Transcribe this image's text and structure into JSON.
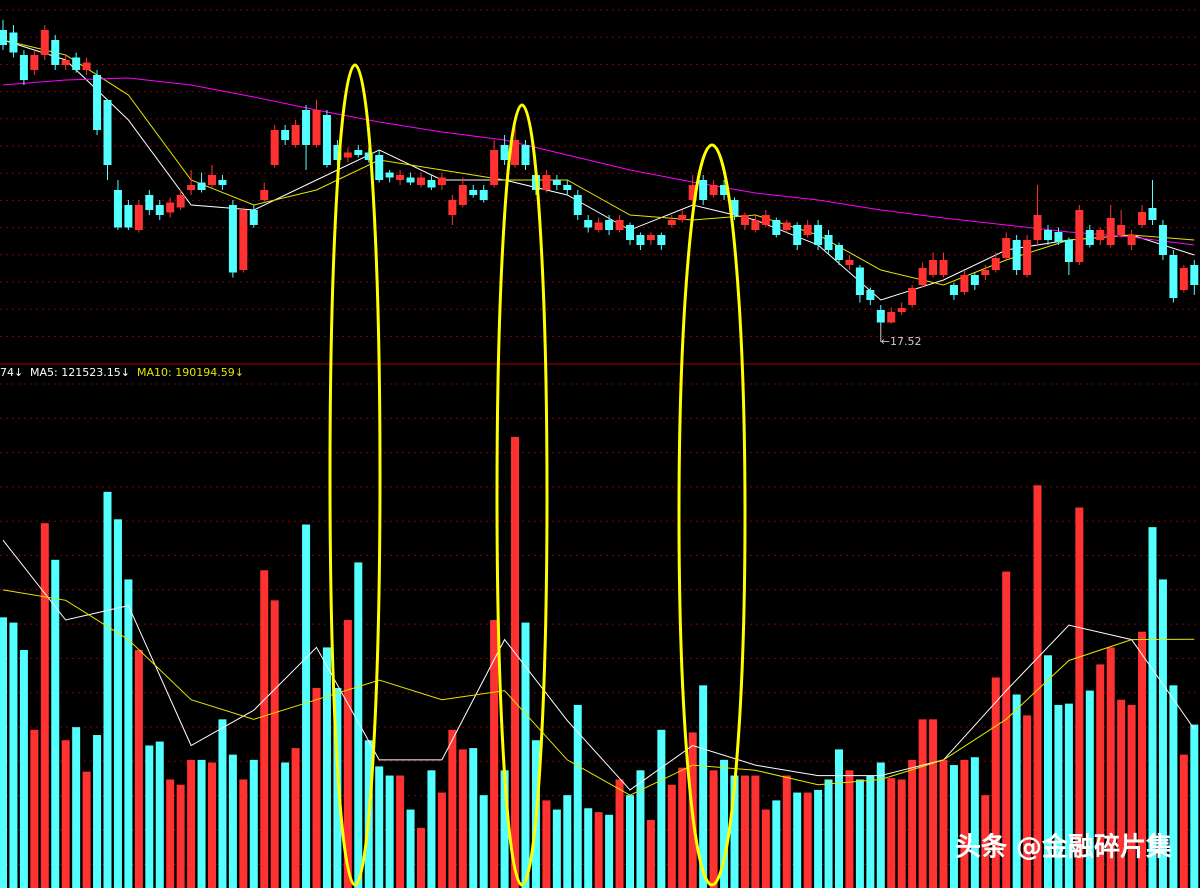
{
  "chart_data": [
    {
      "type": "candlestick",
      "open": [
        23.4,
        23.35,
        22.9,
        22.6,
        22.9,
        23.2,
        22.7,
        22.85,
        22.6,
        22.5,
        22.0,
        20.2,
        19.9,
        19.4,
        20.1,
        19.9,
        19.75,
        19.85,
        20.2,
        20.35,
        20.3,
        20.4,
        19.9,
        18.6,
        19.8,
        20.0,
        20.7,
        21.4,
        21.1,
        21.8,
        21.1,
        21.7,
        21.1,
        20.85,
        21.0,
        20.95,
        20.9,
        20.55,
        20.4,
        20.45,
        20.3,
        20.4,
        20.3,
        19.7,
        19.9,
        20.2,
        20.2,
        20.3,
        21.1,
        20.7,
        21.1,
        20.5,
        20.2,
        20.4,
        20.3,
        20.1,
        19.6,
        19.4,
        19.6,
        19.4,
        19.5,
        19.3,
        19.2,
        19.3,
        19.5,
        19.6,
        20.0,
        20.4,
        20.1,
        20.3,
        20.0,
        19.5,
        19.4,
        19.5,
        19.6,
        19.4,
        19.5,
        19.3,
        19.5,
        19.3,
        19.1,
        18.7,
        18.65,
        18.2,
        17.8,
        17.55,
        17.76,
        17.9,
        18.3,
        18.5,
        18.5,
        18.3,
        18.16,
        18.5,
        18.5,
        18.6,
        18.84,
        19.2,
        18.5,
        19.2,
        19.4,
        19.36,
        19.2,
        18.76,
        19.4,
        19.2,
        19.1,
        19.3,
        19.1,
        19.5,
        19.84,
        19.5,
        18.9,
        18.2,
        18.7
      ],
      "high": [
        23.6,
        23.5,
        23.0,
        23.0,
        23.5,
        23.3,
        22.9,
        22.95,
        22.85,
        22.6,
        22.0,
        20.4,
        20.0,
        20.0,
        20.2,
        20.0,
        20.05,
        20.2,
        20.6,
        20.55,
        20.7,
        20.5,
        20.0,
        19.85,
        19.9,
        20.35,
        21.5,
        21.5,
        21.6,
        21.9,
        22.0,
        21.8,
        21.2,
        21.05,
        21.1,
        21.05,
        21.0,
        20.6,
        20.6,
        20.55,
        20.55,
        20.5,
        20.55,
        20.1,
        20.45,
        20.3,
        20.3,
        21.2,
        21.3,
        21.5,
        21.2,
        20.6,
        20.6,
        20.5,
        20.4,
        20.2,
        19.7,
        19.65,
        19.7,
        19.7,
        19.55,
        19.35,
        19.35,
        19.35,
        19.7,
        19.8,
        20.5,
        20.5,
        20.4,
        20.4,
        20.05,
        19.75,
        19.7,
        19.8,
        19.65,
        19.6,
        19.55,
        19.6,
        19.6,
        19.4,
        19.15,
        18.9,
        18.7,
        18.25,
        17.9,
        17.85,
        17.95,
        18.3,
        18.75,
        18.95,
        18.95,
        18.35,
        18.6,
        18.55,
        18.7,
        18.95,
        19.35,
        19.3,
        19.3,
        20.3,
        19.5,
        19.45,
        19.25,
        19.9,
        19.5,
        19.45,
        19.9,
        19.8,
        19.4,
        19.9,
        20.4,
        19.6,
        19.0,
        18.7,
        18.8
      ],
      "low": [
        23.0,
        22.85,
        22.3,
        22.5,
        22.8,
        22.6,
        22.6,
        22.55,
        22.5,
        21.3,
        20.4,
        19.4,
        19.4,
        19.35,
        19.7,
        19.6,
        19.65,
        19.8,
        20.1,
        20.15,
        20.25,
        20.2,
        18.45,
        18.55,
        19.45,
        19.95,
        20.65,
        21.1,
        21.05,
        20.6,
        21.05,
        20.65,
        20.7,
        20.75,
        20.85,
        20.75,
        20.35,
        20.35,
        20.3,
        20.3,
        20.25,
        20.2,
        20.2,
        19.5,
        19.85,
        20.05,
        19.95,
        20.25,
        20.7,
        20.65,
        20.6,
        20.1,
        20.15,
        20.2,
        20.1,
        19.6,
        19.35,
        19.35,
        19.3,
        19.35,
        19.1,
        19.0,
        19.1,
        19.0,
        19.45,
        19.55,
        19.9,
        19.9,
        20.05,
        20.0,
        19.6,
        19.4,
        19.35,
        19.45,
        19.25,
        19.35,
        19.0,
        19.25,
        19.0,
        18.9,
        18.7,
        18.6,
        17.95,
        17.9,
        17.52,
        17.53,
        17.7,
        17.85,
        18.25,
        18.45,
        18.45,
        18.0,
        18.1,
        18.2,
        18.4,
        18.55,
        18.8,
        18.5,
        18.45,
        19.1,
        19.1,
        19.1,
        18.5,
        18.7,
        19.05,
        19.1,
        19.05,
        19.25,
        19.0,
        19.45,
        19.5,
        18.8,
        17.95,
        18.15,
        18.1
      ],
      "close": [
        23.1,
        22.95,
        22.4,
        22.9,
        23.4,
        22.7,
        22.8,
        22.6,
        22.75,
        21.4,
        20.7,
        19.45,
        19.45,
        19.9,
        19.8,
        19.7,
        19.95,
        20.1,
        20.3,
        20.2,
        20.5,
        20.3,
        18.55,
        19.8,
        19.5,
        20.2,
        21.4,
        21.2,
        21.5,
        21.1,
        21.8,
        20.7,
        20.8,
        20.95,
        20.9,
        20.8,
        20.4,
        20.45,
        20.5,
        20.35,
        20.45,
        20.25,
        20.45,
        20.0,
        20.3,
        20.1,
        20.0,
        21.0,
        20.8,
        21.2,
        20.7,
        20.2,
        20.5,
        20.3,
        20.2,
        19.7,
        19.45,
        19.55,
        19.4,
        19.6,
        19.2,
        19.1,
        19.3,
        19.1,
        19.6,
        19.7,
        20.3,
        20.0,
        20.3,
        20.1,
        19.7,
        19.7,
        19.6,
        19.7,
        19.3,
        19.55,
        19.1,
        19.5,
        19.1,
        19.0,
        18.8,
        18.8,
        18.1,
        18.0,
        17.55,
        17.76,
        17.84,
        18.24,
        18.64,
        18.8,
        18.8,
        18.1,
        18.5,
        18.3,
        18.6,
        18.84,
        19.24,
        18.6,
        19.2,
        19.7,
        19.2,
        19.16,
        18.76,
        19.8,
        19.1,
        19.4,
        19.64,
        19.5,
        19.3,
        19.76,
        19.6,
        18.9,
        18.04,
        18.64,
        18.3
      ],
      "up_color": "#ff3232",
      "down_color": "#54ffff",
      "ylim": [
        16.8,
        24.0
      ],
      "grid": true,
      "lines": [
        {
          "color": "#ffffff",
          "x": [
            0,
            6,
            12,
            18,
            24,
            30,
            36,
            42,
            48,
            54,
            60,
            66,
            72,
            78,
            84,
            90,
            96,
            102,
            108,
            114
          ],
          "values": [
            23.2,
            22.8,
            21.6,
            19.9,
            19.8,
            20.4,
            21.0,
            20.4,
            20.4,
            20.1,
            19.4,
            19.9,
            19.6,
            19.1,
            18.0,
            18.4,
            19.0,
            19.2,
            19.3,
            18.9
          ]
        },
        {
          "color": "#e6e600",
          "x": [
            0,
            6,
            12,
            18,
            24,
            30,
            36,
            42,
            48,
            54,
            60,
            66,
            72,
            78,
            84,
            90,
            96,
            102,
            108,
            114
          ],
          "values": [
            23.2,
            22.9,
            22.1,
            20.4,
            19.9,
            20.2,
            20.8,
            20.6,
            20.4,
            20.4,
            19.7,
            19.6,
            19.7,
            19.3,
            18.6,
            18.3,
            18.8,
            19.2,
            19.3,
            19.2
          ]
        },
        {
          "color": "#ff00ff",
          "x": [
            0,
            6,
            12,
            18,
            24,
            30,
            36,
            42,
            48,
            54,
            60,
            66,
            72,
            78,
            84,
            90,
            96,
            102,
            108,
            114
          ],
          "values": [
            22.3,
            22.4,
            22.44,
            22.3,
            22.06,
            21.8,
            21.56,
            21.36,
            21.2,
            20.9,
            20.6,
            20.36,
            20.14,
            20.0,
            19.8,
            19.64,
            19.5,
            19.36,
            19.26,
            19.1
          ]
        }
      ],
      "low_label": "←17.52"
    },
    {
      "type": "bar",
      "values": [
        207000,
        203000,
        182000,
        121000,
        279000,
        251000,
        113000,
        123000,
        89000,
        117000,
        303000,
        282000,
        236000,
        182000,
        109000,
        112000,
        83000,
        79000,
        98000,
        98000,
        96000,
        129000,
        102000,
        83000,
        98000,
        243000,
        220000,
        96000,
        107000,
        278000,
        153000,
        184000,
        153000,
        205000,
        249000,
        113000,
        93000,
        86000,
        86000,
        60000,
        46000,
        90000,
        73000,
        121000,
        106000,
        107000,
        71000,
        205000,
        90000,
        345000,
        203000,
        113000,
        67000,
        60000,
        71000,
        140000,
        61000,
        58000,
        56000,
        83000,
        71000,
        90000,
        52000,
        121000,
        79000,
        92000,
        119000,
        155000,
        90000,
        98000,
        86000,
        86000,
        86000,
        60000,
        67000,
        86000,
        73000,
        73000,
        75000,
        83000,
        106000,
        90000,
        83000,
        86000,
        96000,
        84000,
        83000,
        98000,
        129000,
        129000,
        98000,
        94000,
        98000,
        100000,
        71000,
        161000,
        242000,
        148000,
        132000,
        308000,
        178000,
        140000,
        141000,
        291000,
        151000,
        171000,
        184000,
        144000,
        140000,
        196000,
        276000,
        236000,
        155000,
        102000,
        125000
      ],
      "ylim": [
        0,
        400000
      ],
      "grid": true,
      "lines": [
        {
          "name": "MA5",
          "color": "#ffffff",
          "x": [
            0,
            6,
            12,
            18,
            24,
            30,
            36,
            42,
            48,
            54,
            60,
            66,
            72,
            78,
            84,
            90,
            96,
            102,
            108,
            114
          ],
          "values": [
            266000,
            205000,
            216000,
            109000,
            136000,
            184000,
            98000,
            98000,
            190000,
            128000,
            75000,
            109000,
            94000,
            86000,
            86000,
            98000,
            151000,
            201000,
            190000,
            121523.15
          ]
        },
        {
          "name": "MA10",
          "color": "#e6e600",
          "x": [
            0,
            6,
            12,
            18,
            24,
            30,
            36,
            42,
            48,
            54,
            60,
            66,
            72,
            78,
            84,
            90,
            96,
            102,
            108,
            114
          ],
          "values": [
            228000,
            220000,
            190000,
            144000,
            129000,
            144000,
            159000,
            144000,
            151000,
            98000,
            71000,
            94000,
            90000,
            79000,
            83000,
            98000,
            129000,
            174000,
            190000,
            190194.59
          ]
        }
      ],
      "legend_texts": [
        "74↓",
        "MA5: 121523.15↓",
        "MA10: 190194.59↓"
      ]
    }
  ],
  "watermark": "头条 @金融碎片集"
}
